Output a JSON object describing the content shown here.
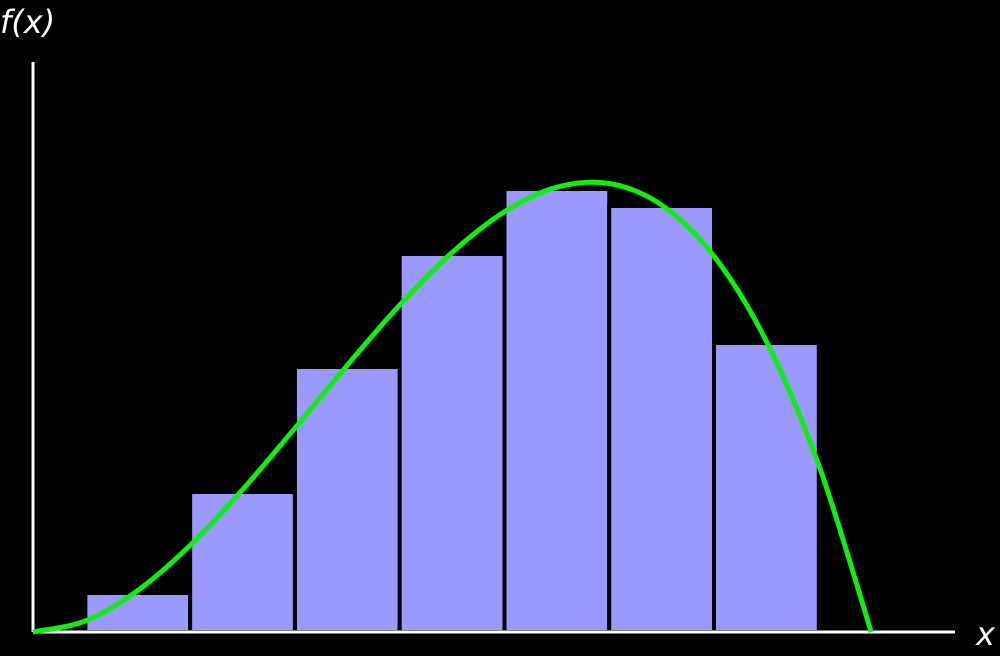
{
  "chart_data": {
    "type": "histogram",
    "y_label": "f(x)",
    "x_label": "x",
    "bins": [
      0.5,
      1.5,
      2.5,
      3.5,
      4.5,
      5.5,
      6.5,
      7.5
    ],
    "values": [
      0.39,
      1.4,
      2.65,
      3.78,
      4.43,
      4.26,
      2.89
    ],
    "color": "#9999ff",
    "curve": {
      "color": "#11ee11",
      "x": [
        0,
        0.5,
        1,
        1.5,
        2,
        2.5,
        3,
        3.5,
        4,
        4.5,
        5,
        5.5,
        6,
        6.5,
        7,
        7.5,
        8
      ],
      "values": [
        0,
        0.111,
        0.415,
        0.867,
        1.423,
        2.038,
        2.669,
        3.269,
        3.795,
        4.203,
        4.448,
        4.485,
        4.27,
        3.758,
        2.906,
        1.668,
        0
      ]
    },
    "xlim": [
      0,
      8.8
    ],
    "ylim": [
      0,
      5.7
    ]
  }
}
